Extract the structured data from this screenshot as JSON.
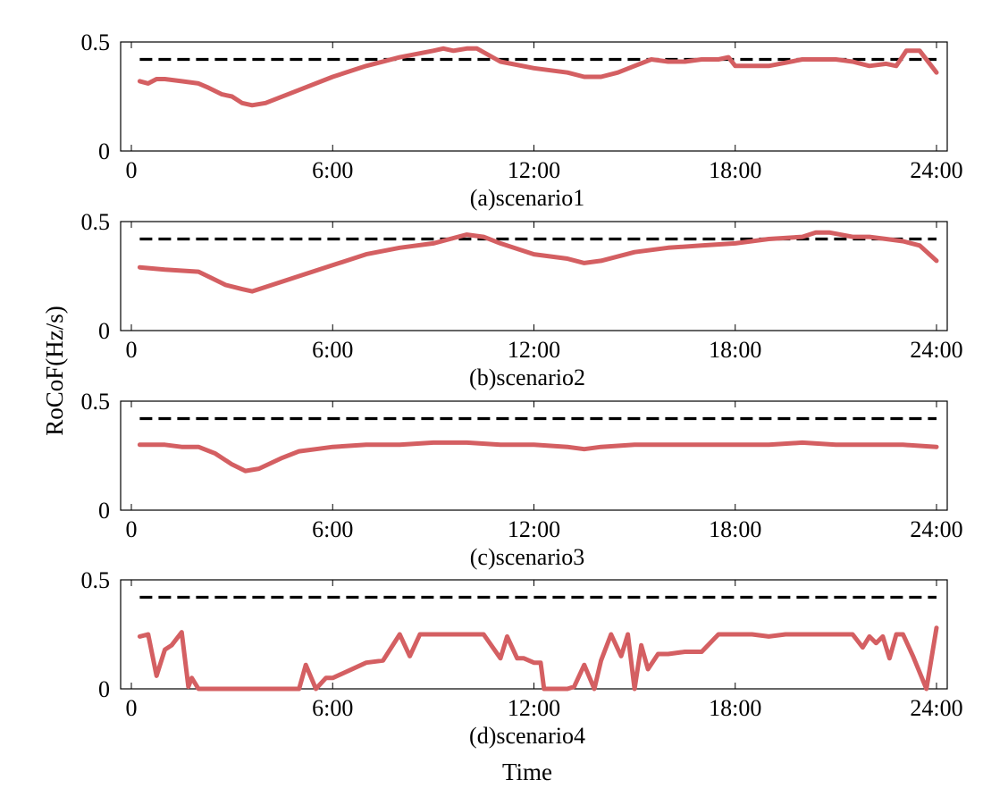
{
  "figure": {
    "ylabel": "RoCoF(Hz/s)",
    "xlabel": "Time"
  },
  "colors": {
    "series": "#d45f62",
    "threshold": "#000000",
    "axes": "#000000"
  },
  "chart_data": [
    {
      "type": "line",
      "caption": "(a)scenario1",
      "xlim": [
        0,
        24
      ],
      "ylim": [
        0,
        0.5
      ],
      "xticks": [
        0,
        6,
        12,
        18,
        24
      ],
      "xtick_labels": [
        "0",
        "6:00",
        "12:00",
        "18:00",
        "24:00"
      ],
      "yticks": [
        0,
        0.5
      ],
      "ytick_labels": [
        "0",
        "0.5"
      ],
      "threshold": 0.42,
      "x": [
        0.25,
        0.5,
        0.75,
        1.0,
        1.5,
        2.0,
        2.3,
        2.7,
        3.0,
        3.3,
        3.6,
        4.0,
        5.0,
        6.0,
        7.0,
        8.0,
        9.0,
        9.3,
        9.6,
        10.0,
        10.3,
        11.0,
        12.0,
        13.0,
        13.5,
        14.0,
        14.5,
        15.0,
        15.5,
        16.0,
        16.5,
        17.0,
        17.5,
        17.8,
        18.0,
        19.0,
        20.0,
        21.0,
        21.5,
        22.0,
        22.5,
        22.8,
        23.1,
        23.5,
        24.0
      ],
      "y": [
        0.32,
        0.31,
        0.33,
        0.33,
        0.32,
        0.31,
        0.29,
        0.26,
        0.25,
        0.22,
        0.21,
        0.22,
        0.28,
        0.34,
        0.39,
        0.43,
        0.46,
        0.47,
        0.46,
        0.47,
        0.47,
        0.41,
        0.38,
        0.36,
        0.34,
        0.34,
        0.36,
        0.39,
        0.42,
        0.41,
        0.41,
        0.42,
        0.42,
        0.43,
        0.39,
        0.39,
        0.42,
        0.42,
        0.41,
        0.39,
        0.4,
        0.39,
        0.46,
        0.46,
        0.36
      ]
    },
    {
      "type": "line",
      "caption": "(b)scenario2",
      "xlim": [
        0,
        24
      ],
      "ylim": [
        0,
        0.5
      ],
      "xticks": [
        0,
        6,
        12,
        18,
        24
      ],
      "xtick_labels": [
        "0",
        "6:00",
        "12:00",
        "18:00",
        "24:00"
      ],
      "yticks": [
        0,
        0.5
      ],
      "ytick_labels": [
        "0",
        "0.5"
      ],
      "threshold": 0.42,
      "x": [
        0.25,
        1.0,
        2.0,
        2.4,
        2.8,
        3.3,
        3.6,
        4.0,
        5.0,
        6.0,
        7.0,
        8.0,
        9.0,
        9.5,
        10.0,
        10.5,
        11.0,
        12.0,
        13.0,
        13.5,
        14.0,
        15.0,
        16.0,
        17.0,
        18.0,
        19.0,
        20.0,
        20.4,
        20.8,
        21.5,
        22.0,
        22.5,
        23.0,
        23.5,
        24.0
      ],
      "y": [
        0.29,
        0.28,
        0.27,
        0.24,
        0.21,
        0.19,
        0.18,
        0.2,
        0.25,
        0.3,
        0.35,
        0.38,
        0.4,
        0.42,
        0.44,
        0.43,
        0.4,
        0.35,
        0.33,
        0.31,
        0.32,
        0.36,
        0.38,
        0.39,
        0.4,
        0.42,
        0.43,
        0.45,
        0.45,
        0.43,
        0.43,
        0.42,
        0.41,
        0.39,
        0.32
      ]
    },
    {
      "type": "line",
      "caption": "(c)scenario3",
      "xlim": [
        0,
        24
      ],
      "ylim": [
        0,
        0.5
      ],
      "xticks": [
        0,
        6,
        12,
        18,
        24
      ],
      "xtick_labels": [
        "0",
        "6:00",
        "12:00",
        "18:00",
        "24:00"
      ],
      "yticks": [
        0,
        0.5
      ],
      "ytick_labels": [
        "0",
        "0.5"
      ],
      "threshold": 0.42,
      "x": [
        0.25,
        1.0,
        1.5,
        2.0,
        2.5,
        3.0,
        3.4,
        3.8,
        4.5,
        5.0,
        5.5,
        6.0,
        7.0,
        8.0,
        9.0,
        10.0,
        11.0,
        12.0,
        13.0,
        13.5,
        14.0,
        15.0,
        16.0,
        17.0,
        18.0,
        19.0,
        20.0,
        21.0,
        22.0,
        23.0,
        24.0
      ],
      "y": [
        0.3,
        0.3,
        0.29,
        0.29,
        0.26,
        0.21,
        0.18,
        0.19,
        0.24,
        0.27,
        0.28,
        0.29,
        0.3,
        0.3,
        0.31,
        0.31,
        0.3,
        0.3,
        0.29,
        0.28,
        0.29,
        0.3,
        0.3,
        0.3,
        0.3,
        0.3,
        0.31,
        0.3,
        0.3,
        0.3,
        0.29
      ]
    },
    {
      "type": "line",
      "caption": "(d)scenario4",
      "xlim": [
        0,
        24
      ],
      "ylim": [
        0,
        0.5
      ],
      "xticks": [
        0,
        6,
        12,
        18,
        24
      ],
      "xtick_labels": [
        "0",
        "6:00",
        "12:00",
        "18:00",
        "24:00"
      ],
      "yticks": [
        0,
        0.5
      ],
      "ytick_labels": [
        "0",
        "0.5"
      ],
      "threshold": 0.42,
      "x": [
        0.25,
        0.5,
        0.75,
        1.0,
        1.2,
        1.5,
        1.7,
        1.8,
        2.0,
        2.2,
        2.5,
        3.0,
        4.0,
        5.0,
        5.2,
        5.5,
        5.8,
        6.0,
        7.0,
        7.5,
        8.0,
        8.3,
        8.6,
        9.0,
        9.5,
        10.0,
        10.5,
        11.0,
        11.2,
        11.5,
        11.7,
        12.0,
        12.2,
        12.3,
        12.5,
        13.0,
        13.2,
        13.5,
        13.8,
        14.0,
        14.3,
        14.6,
        14.8,
        15.0,
        15.2,
        15.4,
        15.7,
        16.0,
        16.5,
        17.0,
        17.5,
        17.8,
        18.0,
        18.5,
        19.0,
        19.5,
        20.0,
        21.0,
        21.5,
        21.8,
        22.0,
        22.2,
        22.4,
        22.6,
        22.8,
        23.0,
        23.3,
        23.7,
        24.0
      ],
      "y": [
        0.24,
        0.25,
        0.06,
        0.18,
        0.2,
        0.26,
        0.01,
        0.05,
        0.0,
        0.0,
        0.0,
        0.0,
        0.0,
        0.0,
        0.11,
        0.0,
        0.05,
        0.05,
        0.12,
        0.13,
        0.25,
        0.15,
        0.25,
        0.25,
        0.25,
        0.25,
        0.25,
        0.14,
        0.24,
        0.14,
        0.14,
        0.12,
        0.12,
        0.0,
        0.0,
        0.0,
        0.01,
        0.11,
        0.0,
        0.13,
        0.25,
        0.15,
        0.25,
        0.0,
        0.2,
        0.09,
        0.16,
        0.16,
        0.17,
        0.17,
        0.25,
        0.25,
        0.25,
        0.25,
        0.24,
        0.25,
        0.25,
        0.25,
        0.25,
        0.19,
        0.24,
        0.21,
        0.24,
        0.14,
        0.25,
        0.25,
        0.15,
        0.0,
        0.28
      ]
    }
  ]
}
